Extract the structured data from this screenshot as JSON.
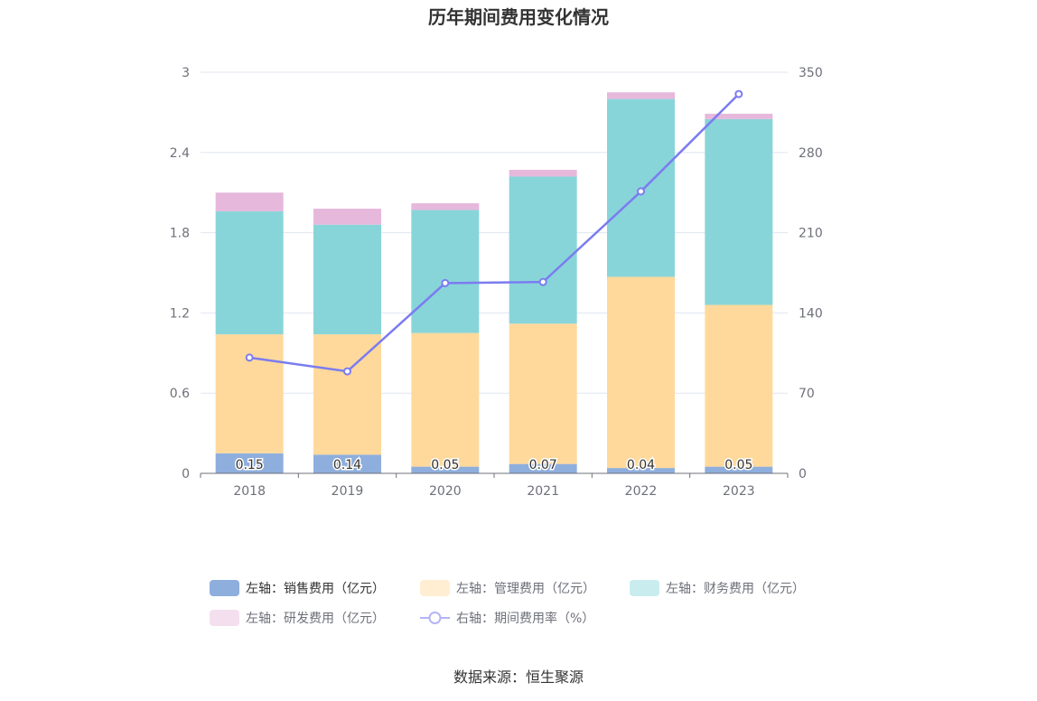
{
  "chart_data": {
    "type": "bar",
    "title": "历年期间费用变化情况",
    "categories": [
      "2018",
      "2019",
      "2020",
      "2021",
      "2022",
      "2023"
    ],
    "stacked": true,
    "left_axis": {
      "ticks": [
        "0",
        "0.6",
        "1.2",
        "1.8",
        "2.4",
        "3"
      ],
      "ylim": [
        0,
        3
      ]
    },
    "right_axis": {
      "ticks": [
        "0",
        "70",
        "140",
        "210",
        "280",
        "350"
      ],
      "ylim": [
        0,
        350
      ]
    },
    "series": [
      {
        "name": "左轴：销售费用（亿元）",
        "type": "bar",
        "axis": "left",
        "color": "#8eaedd",
        "values": [
          0.15,
          0.14,
          0.05,
          0.07,
          0.04,
          0.05
        ],
        "labels": [
          "0.15",
          "0.14",
          "0.05",
          "0.07",
          "0.04",
          "0.05"
        ]
      },
      {
        "name": "左轴：管理费用（亿元）",
        "type": "bar",
        "axis": "left",
        "color": "#ffd99c",
        "values": [
          0.89,
          0.9,
          1.0,
          1.05,
          1.43,
          1.21
        ]
      },
      {
        "name": "左轴：财务费用（亿元）",
        "type": "bar",
        "axis": "left",
        "color": "#88d5d9",
        "values": [
          0.92,
          0.82,
          0.92,
          1.1,
          1.33,
          1.39
        ]
      },
      {
        "name": "左轴：研发费用（亿元）",
        "type": "bar",
        "axis": "left",
        "color": "#e6b8dc",
        "values": [
          0.14,
          0.12,
          0.05,
          0.05,
          0.05,
          0.04
        ]
      },
      {
        "name": "右轴：期间费用率（%）",
        "type": "line",
        "axis": "right",
        "color": "#7b7cf0",
        "values": [
          101,
          89,
          166,
          167,
          246,
          331
        ]
      }
    ],
    "legend_position": "bottom",
    "grid": true
  },
  "source": "数据来源：恒生聚源"
}
